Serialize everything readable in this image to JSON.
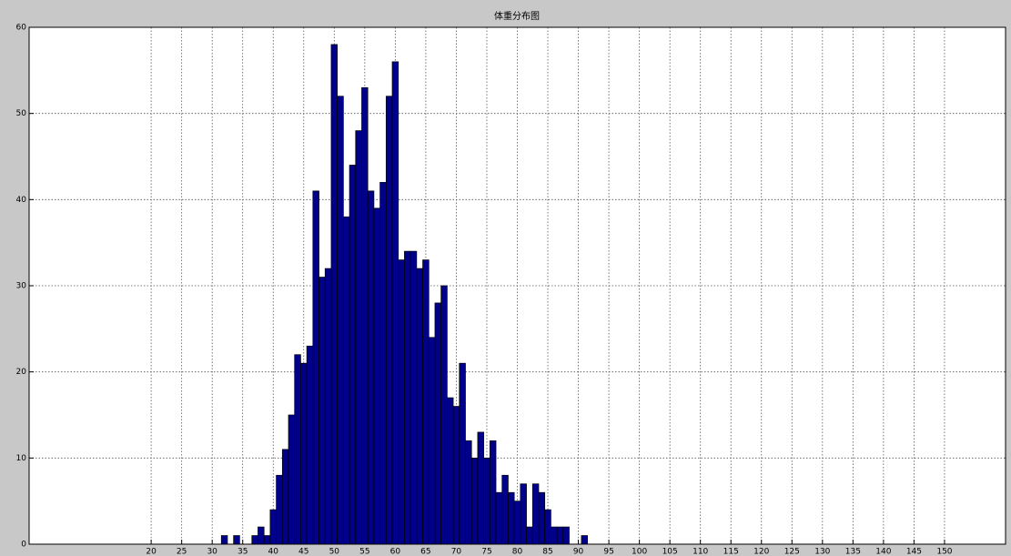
{
  "chart_data": {
    "type": "histogram",
    "title": "体重分布图",
    "bins": [
      31.5,
      32.5,
      33.5,
      34.5,
      35.5,
      36.5,
      37.5,
      38.5,
      39.5,
      40.5,
      41.5,
      42.5,
      43.5,
      44.5,
      45.5,
      46.5,
      47.5,
      48.5,
      49.5,
      50.5,
      51.5,
      52.5,
      53.5,
      54.5,
      55.5,
      56.5,
      57.5,
      58.5,
      59.5,
      60.5,
      61.5,
      62.5,
      63.5,
      64.5,
      65.5,
      66.5,
      67.5,
      68.5,
      69.5,
      70.5,
      71.5,
      72.5,
      73.5,
      74.5,
      75.5,
      76.5,
      77.5,
      78.5,
      79.5,
      80.5,
      81.5,
      82.5,
      83.5,
      84.5,
      85.5,
      86.5,
      87.5,
      88.5,
      89.5,
      90.5,
      91.5
    ],
    "values": [
      1,
      0,
      1,
      0,
      0,
      1,
      2,
      1,
      4,
      8,
      11,
      15,
      22,
      21,
      23,
      41,
      31,
      32,
      58,
      52,
      38,
      44,
      48,
      53,
      41,
      39,
      42,
      52,
      56,
      33,
      34,
      34,
      32,
      33,
      24,
      28,
      30,
      17,
      16,
      21,
      12,
      10,
      13,
      10,
      12,
      6,
      8,
      6,
      5,
      7,
      2,
      7,
      6,
      4,
      2,
      2,
      2,
      0,
      0,
      1
    ],
    "color": "#00008b",
    "xlim": [
      0,
      160
    ],
    "xticks": [
      20,
      25,
      30,
      35,
      40,
      45,
      50,
      55,
      60,
      65,
      70,
      75,
      80,
      85,
      90,
      95,
      100,
      105,
      110,
      115,
      120,
      125,
      130,
      135,
      140,
      145,
      150
    ],
    "ylim": [
      0,
      60
    ],
    "yticks": [
      0,
      10,
      20,
      30,
      40,
      50,
      60
    ],
    "grid": true
  }
}
